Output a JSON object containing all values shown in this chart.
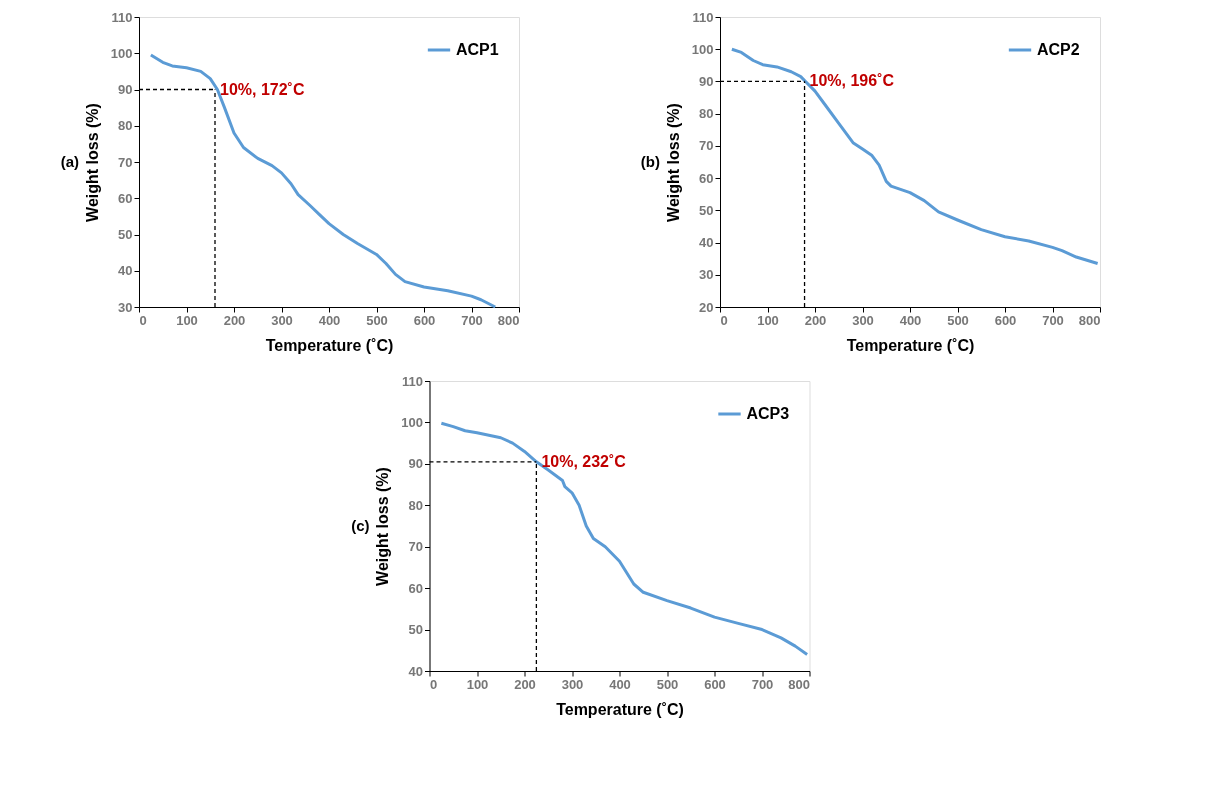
{
  "chart_data": [
    {
      "type": "line",
      "xlabel": "Temperature (˚C)",
      "ylabel": "Weight loss (%)",
      "xlim": [
        0,
        800
      ],
      "ylim": [
        30,
        110
      ],
      "xticks": [
        0,
        100,
        200,
        300,
        400,
        500,
        600,
        700,
        800
      ],
      "yticks": [
        30,
        40,
        50,
        60,
        70,
        80,
        90,
        100,
        110
      ],
      "grid": false,
      "legend": "top right",
      "line_style": "solid",
      "x": [
        25,
        50,
        70,
        100,
        130,
        150,
        165,
        180,
        200,
        220,
        250,
        280,
        300,
        320,
        335,
        360,
        380,
        400,
        430,
        460,
        500,
        520,
        540,
        560,
        600,
        650,
        700,
        720,
        750
      ],
      "series": [
        {
          "name": "ACP1",
          "color": "#5b9bd5",
          "values": [
            99.5,
            97.5,
            96.5,
            96,
            95,
            93,
            90,
            85,
            78,
            74,
            71,
            69,
            67,
            64,
            61,
            58,
            55.5,
            53,
            50,
            47.5,
            44.5,
            42,
            39,
            37,
            35.5,
            34.5,
            33,
            32,
            30
          ]
        }
      ],
      "annotations": [
        "(a)",
        {
          "text": "10%, 172˚C",
          "x": 160,
          "y": 90
        }
      ]
    },
    {
      "type": "line",
      "xlabel": "Temperature (˚C)",
      "ylabel": "Weight loss (%)",
      "xlim": [
        0,
        800
      ],
      "ylim": [
        20,
        110
      ],
      "xticks": [
        0,
        100,
        200,
        300,
        400,
        500,
        600,
        700,
        800
      ],
      "yticks": [
        20,
        30,
        40,
        50,
        60,
        70,
        80,
        90,
        100,
        110
      ],
      "grid": false,
      "legend": "top right",
      "line_style": "solid",
      "x": [
        25,
        45,
        70,
        90,
        120,
        150,
        170,
        180,
        200,
        220,
        250,
        280,
        300,
        320,
        335,
        350,
        360,
        400,
        430,
        460,
        500,
        550,
        600,
        650,
        700,
        720,
        750,
        795
      ],
      "series": [
        {
          "name": "ACP2",
          "color": "#5b9bd5",
          "values": [
            100,
            99,
            96.5,
            95.2,
            94.5,
            93,
            91.5,
            90,
            87,
            83,
            77,
            71,
            69,
            67,
            64,
            59,
            57.5,
            55.5,
            53,
            49.5,
            47,
            44,
            41.8,
            40.5,
            38.5,
            37.5,
            35.5,
            33.5
          ]
        }
      ],
      "annotations": [
        "(b)",
        {
          "text": "10%, 196˚C",
          "x": 178,
          "y": 90
        }
      ]
    },
    {
      "type": "line",
      "xlabel": "Temperature (˚C)",
      "ylabel": "Weight loss (%)",
      "xlim": [
        0,
        800
      ],
      "ylim": [
        40,
        110
      ],
      "xticks": [
        0,
        100,
        200,
        300,
        400,
        500,
        600,
        700,
        800
      ],
      "yticks": [
        40,
        50,
        60,
        70,
        80,
        90,
        100,
        110
      ],
      "grid": false,
      "legend": "top right",
      "line_style": "solid",
      "x": [
        25,
        50,
        75,
        100,
        150,
        175,
        200,
        225,
        250,
        280,
        285,
        300,
        315,
        330,
        345,
        370,
        400,
        430,
        450,
        500,
        550,
        600,
        650,
        700,
        740,
        770,
        795
      ],
      "series": [
        {
          "name": "ACP3",
          "color": "#5b9bd5",
          "values": [
            99.8,
            99,
            98,
            97.5,
            96.3,
            95,
            93,
            90.5,
            88.5,
            86,
            84.5,
            83,
            80,
            75,
            72,
            70,
            66.5,
            61,
            59,
            57,
            55.2,
            53,
            51.5,
            50,
            48,
            46,
            44
          ]
        }
      ],
      "annotations": [
        "(c)",
        {
          "text": "10%, 232˚C",
          "x": 225,
          "y": 90.5
        }
      ]
    }
  ]
}
